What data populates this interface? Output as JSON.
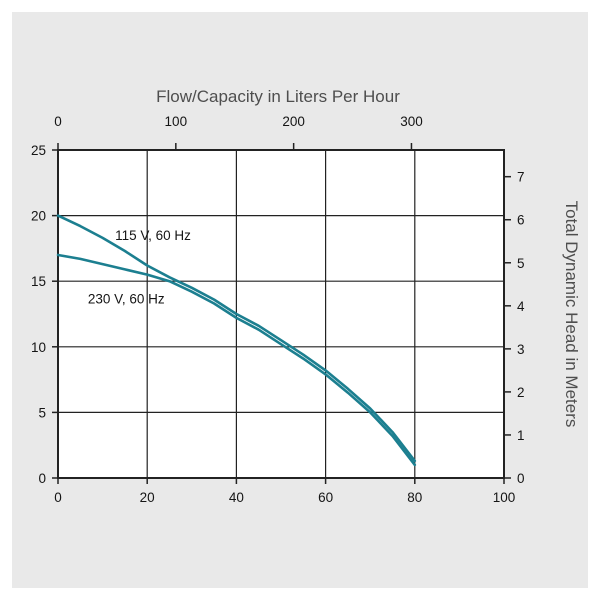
{
  "chart_data": {
    "type": "line",
    "title": "Flow/Capacity in Liters Per Hour",
    "top_axis": {
      "label": "Flow/Capacity in Liters Per Hour",
      "ticks": [
        0,
        100,
        200,
        300
      ]
    },
    "bottom_axis": {
      "ticks": [
        0,
        20,
        40,
        60,
        80,
        100
      ]
    },
    "left_axis": {
      "ticks": [
        0,
        5,
        10,
        15,
        20,
        25
      ],
      "range": [
        0,
        25
      ]
    },
    "right_axis": {
      "label": "Total Dynamic Head in Meters",
      "ticks": [
        0,
        1,
        2,
        3,
        4,
        5,
        6,
        7
      ],
      "range": [
        0,
        7
      ]
    },
    "series": [
      {
        "name": "115 V, 60 Hz",
        "points": [
          [
            0,
            20
          ],
          [
            5,
            19.2
          ],
          [
            10,
            18.3
          ],
          [
            15,
            17.3
          ],
          [
            20,
            16.2
          ],
          [
            25,
            15.3
          ],
          [
            30,
            14.5
          ],
          [
            35,
            13.6
          ],
          [
            40,
            12.5
          ],
          [
            45,
            11.6
          ],
          [
            50,
            10.5
          ],
          [
            55,
            9.4
          ],
          [
            60,
            8.2
          ],
          [
            65,
            6.8
          ],
          [
            70,
            5.3
          ],
          [
            75,
            3.5
          ],
          [
            80,
            1.3
          ]
        ]
      },
      {
        "name": "230 V, 60 Hz",
        "points": [
          [
            0,
            17
          ],
          [
            5,
            16.7
          ],
          [
            10,
            16.3
          ],
          [
            15,
            15.9
          ],
          [
            20,
            15.5
          ],
          [
            25,
            15.0
          ],
          [
            30,
            14.2
          ],
          [
            35,
            13.3
          ],
          [
            40,
            12.2
          ],
          [
            45,
            11.3
          ],
          [
            50,
            10.2
          ],
          [
            55,
            9.1
          ],
          [
            60,
            7.9
          ],
          [
            65,
            6.5
          ],
          [
            70,
            5.0
          ],
          [
            75,
            3.2
          ],
          [
            80,
            1.0
          ]
        ]
      }
    ],
    "annotations": [
      {
        "text": "115 V, 60 Hz",
        "x": 12.8,
        "y": 18.15
      },
      {
        "text": "230 V, 60 Hz",
        "x": 6.7,
        "y": 13.3
      }
    ],
    "colors": {
      "curve": "#1c7f90",
      "grid": "#222222",
      "panel": "#e9e9e9",
      "plot_bg": "#ffffff",
      "muted_text": "#4e4e4e",
      "tick_text": "#151515"
    }
  }
}
